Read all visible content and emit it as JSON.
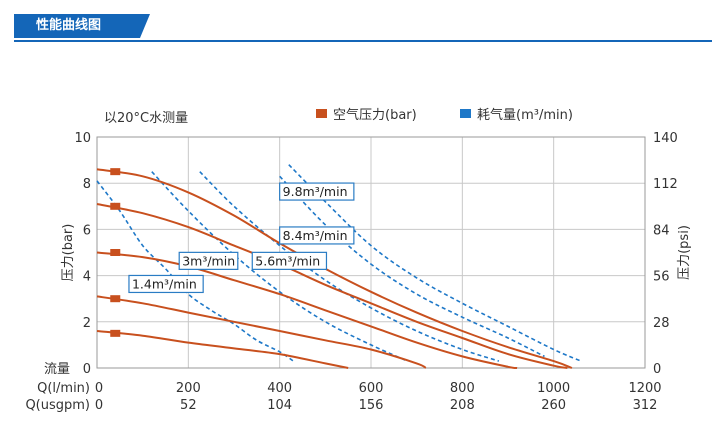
{
  "header": {
    "title": "性能曲线图"
  },
  "chart_data": {
    "type": "line",
    "caption": "以20°C水测量",
    "legend": [
      {
        "name": "空气压力(bar)",
        "color": "#c8501e"
      },
      {
        "name": "耗气量(m³/min)",
        "color": "#1e78c8"
      }
    ],
    "ylabel_left": "压力(bar)",
    "ylabel_right": "压力(psi)",
    "flow_label": "流量",
    "ylim": [
      0,
      10
    ],
    "yticks": [
      "0",
      "2",
      "4",
      "6",
      "8",
      "10"
    ],
    "yticks_right": [
      "0",
      "28",
      "56",
      "84",
      "112",
      "140"
    ],
    "xlim": [
      0,
      1200
    ],
    "x_rows": [
      {
        "label": "Q(l/min)",
        "ticks": [
          "0",
          "200",
          "400",
          "600",
          "800",
          "1000",
          "1200"
        ]
      },
      {
        "label": "Q(usgpm)",
        "ticks": [
          "0",
          "52",
          "104",
          "156",
          "208",
          "260",
          "312"
        ]
      }
    ],
    "grid": true,
    "pressure_curves": [
      {
        "air_pressure": 8.5,
        "points": [
          [
            0,
            8.6
          ],
          [
            100,
            8.3
          ],
          [
            200,
            7.6
          ],
          [
            300,
            6.6
          ],
          [
            400,
            5.4
          ],
          [
            500,
            4.3
          ],
          [
            600,
            3.3
          ],
          [
            700,
            2.4
          ],
          [
            800,
            1.6
          ],
          [
            900,
            0.9
          ],
          [
            1000,
            0.3
          ],
          [
            1040,
            0
          ]
        ]
      },
      {
        "air_pressure": 7,
        "points": [
          [
            0,
            7.1
          ],
          [
            100,
            6.7
          ],
          [
            200,
            6.1
          ],
          [
            300,
            5.3
          ],
          [
            400,
            4.5
          ],
          [
            500,
            3.6
          ],
          [
            600,
            2.8
          ],
          [
            700,
            2.0
          ],
          [
            800,
            1.3
          ],
          [
            900,
            0.6
          ],
          [
            1000,
            0.1
          ],
          [
            1030,
            0
          ]
        ]
      },
      {
        "air_pressure": 5,
        "points": [
          [
            0,
            5.0
          ],
          [
            100,
            4.8
          ],
          [
            200,
            4.4
          ],
          [
            300,
            3.8
          ],
          [
            400,
            3.2
          ],
          [
            500,
            2.5
          ],
          [
            600,
            1.8
          ],
          [
            700,
            1.1
          ],
          [
            800,
            0.5
          ],
          [
            900,
            0.05
          ],
          [
            920,
            0
          ]
        ]
      },
      {
        "air_pressure": 3,
        "points": [
          [
            0,
            3.1
          ],
          [
            100,
            2.8
          ],
          [
            200,
            2.4
          ],
          [
            300,
            2.0
          ],
          [
            400,
            1.6
          ],
          [
            500,
            1.2
          ],
          [
            600,
            0.8
          ],
          [
            700,
            0.2
          ],
          [
            720,
            0
          ]
        ]
      },
      {
        "air_pressure": 1.5,
        "points": [
          [
            0,
            1.6
          ],
          [
            100,
            1.4
          ],
          [
            200,
            1.1
          ],
          [
            300,
            0.85
          ],
          [
            400,
            0.6
          ],
          [
            500,
            0.2
          ],
          [
            550,
            0
          ]
        ]
      }
    ],
    "consumption_curves": [
      {
        "label": "1.4m³/min",
        "points": [
          [
            0,
            8.1
          ],
          [
            50,
            6.8
          ],
          [
            100,
            5.3
          ],
          [
            150,
            4.3
          ],
          [
            200,
            3.2
          ],
          [
            250,
            2.5
          ],
          [
            300,
            1.9
          ],
          [
            350,
            1.2
          ],
          [
            400,
            0.7
          ],
          [
            430,
            0.3
          ]
        ]
      },
      {
        "label": "3m³/min",
        "points": [
          [
            120,
            8.5
          ],
          [
            200,
            6.8
          ],
          [
            300,
            4.9
          ],
          [
            400,
            3.3
          ],
          [
            500,
            2.0
          ],
          [
            600,
            1.0
          ],
          [
            680,
            0.3
          ]
        ]
      },
      {
        "label": "5.6m³/min",
        "points": [
          [
            225,
            8.5
          ],
          [
            300,
            7.0
          ],
          [
            400,
            5.3
          ],
          [
            500,
            3.8
          ],
          [
            600,
            2.6
          ],
          [
            700,
            1.6
          ],
          [
            800,
            0.8
          ],
          [
            880,
            0.3
          ]
        ]
      },
      {
        "label": "8.4m³/min",
        "points": [
          [
            400,
            8.3
          ],
          [
            500,
            6.2
          ],
          [
            600,
            4.5
          ],
          [
            700,
            3.2
          ],
          [
            800,
            2.2
          ],
          [
            900,
            1.3
          ],
          [
            980,
            0.5
          ]
        ]
      },
      {
        "label": "9.8m³/min",
        "points": [
          [
            420,
            8.8
          ],
          [
            500,
            7.2
          ],
          [
            600,
            5.3
          ],
          [
            700,
            3.9
          ],
          [
            800,
            2.8
          ],
          [
            900,
            1.8
          ],
          [
            1000,
            0.8
          ],
          [
            1060,
            0.3
          ]
        ]
      }
    ],
    "flow_labels": [
      {
        "text": "9.8m³/min",
        "x": 400,
        "y": 7.4
      },
      {
        "text": "8.4m³/min",
        "x": 400,
        "y": 5.5
      },
      {
        "text": "3m³/min",
        "x": 180,
        "y": 4.4
      },
      {
        "text": "5.6m³/min",
        "x": 340,
        "y": 4.4
      },
      {
        "text": "1.4m³/min",
        "x": 70,
        "y": 3.4
      }
    ]
  }
}
